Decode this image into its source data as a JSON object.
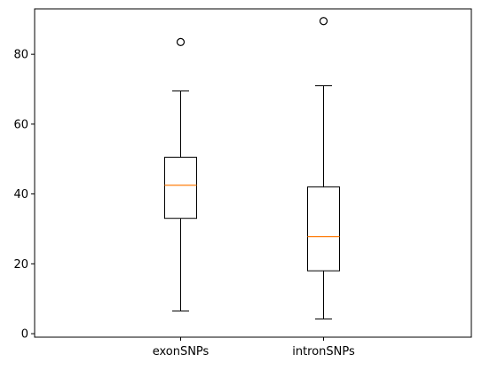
{
  "chart_data": {
    "type": "box",
    "title": "",
    "xlabel": "",
    "ylabel": "",
    "ylim": [
      -1,
      93
    ],
    "yticks": [
      0,
      20,
      40,
      60,
      80
    ],
    "grid": false,
    "categories": [
      "exonSNPs",
      "intronSNPs"
    ],
    "series": [
      {
        "category": "exonSNPs",
        "min": 6.5,
        "q1": 33,
        "median": 42.5,
        "q3": 50.5,
        "max": 69.5,
        "outliers": [
          83.5
        ]
      },
      {
        "category": "intronSNPs",
        "min": 4.2,
        "q1": 18,
        "median": 27.8,
        "q3": 42,
        "max": 71,
        "outliers": [
          89.5
        ]
      }
    ],
    "colors": {
      "box": "#000000",
      "median": "#ff7f0e",
      "outlier_edge": "#000000"
    }
  }
}
